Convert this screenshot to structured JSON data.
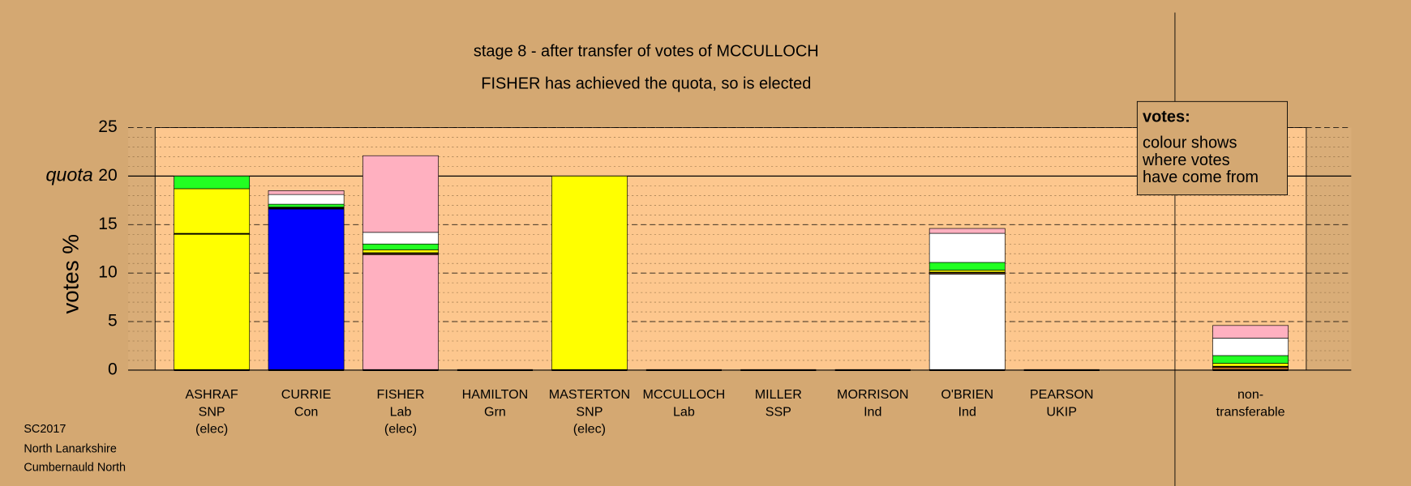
{
  "chart_data": {
    "type": "bar",
    "stacked": true,
    "title": "stage 8 - after transfer of votes of MCCULLOCH",
    "subtitle": "FISHER has achieved the quota, so is elected",
    "ylabel": "votes %",
    "quota": 20,
    "quota_label": "quota",
    "ylim": [
      0,
      25
    ],
    "yticks": [
      0,
      5,
      10,
      15,
      20,
      25
    ],
    "grid": true,
    "minor_grid": true,
    "categories": [
      [
        "ASHRAF",
        "SNP",
        "(elec)"
      ],
      [
        "CURRIE",
        "Con"
      ],
      [
        "FISHER",
        "Lab",
        "(elec)"
      ],
      [
        "HAMILTON",
        "Grn"
      ],
      [
        "MASTERTON",
        "SNP",
        "(elec)"
      ],
      [
        "MCCULLOCH",
        "Lab"
      ],
      [
        "MILLER",
        "SSP"
      ],
      [
        "MORRISON",
        "Ind"
      ],
      [
        "O'BRIEN",
        "Ind"
      ],
      [
        "PEARSON",
        "UKIP"
      ],
      [
        "non-",
        "transferable"
      ]
    ],
    "series": [
      {
        "color": "#ffff00",
        "values": [
          14.0,
          0,
          0,
          0,
          20.0,
          0,
          0,
          0,
          0,
          0,
          0
        ]
      },
      {
        "color": "#0000ff",
        "values": [
          0,
          16.6,
          0,
          0,
          0,
          0,
          0,
          0,
          0,
          0,
          0
        ]
      },
      {
        "color": "#ffb0c0",
        "values": [
          0,
          0,
          11.9,
          0,
          0,
          0,
          0,
          0,
          0,
          0,
          0
        ]
      },
      {
        "color": "#ffffff",
        "values": [
          0,
          0,
          0,
          0,
          0,
          0,
          0,
          0,
          9.9,
          0,
          0
        ]
      },
      {
        "color": "#c07020",
        "values": [
          0,
          0,
          0.1,
          0,
          0,
          0,
          0,
          0,
          0.1,
          0,
          0.3
        ]
      },
      {
        "color": "#000000",
        "values": [
          0.1,
          0.2,
          0.1,
          0,
          0,
          0,
          0,
          0,
          0.1,
          0,
          0.1
        ]
      },
      {
        "color": "#ffff00",
        "values": [
          4.6,
          0,
          0.3,
          0,
          0,
          0,
          0,
          0,
          0.2,
          0,
          0.3
        ]
      },
      {
        "color": "#22ff22",
        "values": [
          1.3,
          0.3,
          0.6,
          0,
          0,
          0,
          0,
          0,
          0.8,
          0,
          0.8
        ]
      },
      {
        "color": "#ffffff",
        "values": [
          0,
          1.0,
          1.2,
          0,
          0,
          0,
          0,
          0,
          3.0,
          0,
          1.8
        ]
      },
      {
        "color": "#ffb0c0",
        "values": [
          0,
          0.4,
          7.9,
          0,
          0,
          0,
          0,
          0,
          0.5,
          0,
          1.3
        ]
      }
    ],
    "legend_title": "votes:",
    "legend_text": [
      "colour shows",
      "where votes",
      "have come from"
    ],
    "footer": [
      "SC2017",
      "North Lanarkshire",
      "Cumbernauld North"
    ]
  }
}
